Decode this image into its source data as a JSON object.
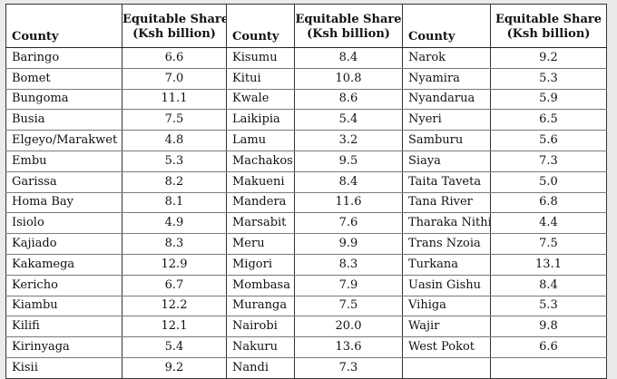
{
  "headers": {
    "county": "County",
    "share_line1": "Equitable Share",
    "share_line2": "(Ksh billion)"
  },
  "columns": [
    {
      "rows": [
        {
          "county": "Baringo",
          "value": "6.6"
        },
        {
          "county": "Bomet",
          "value": "7.0"
        },
        {
          "county": "Bungoma",
          "value": "11.1"
        },
        {
          "county": "Busia",
          "value": "7.5"
        },
        {
          "county": "Elgeyo/Marakwet",
          "value": "4.8"
        },
        {
          "county": "Embu",
          "value": "5.3"
        },
        {
          "county": "Garissa",
          "value": "8.2"
        },
        {
          "county": "Homa Bay",
          "value": "8.1"
        },
        {
          "county": "Isiolo",
          "value": "4.9"
        },
        {
          "county": "Kajiado",
          "value": "8.3"
        },
        {
          "county": "Kakamega",
          "value": "12.9"
        },
        {
          "county": "Kericho",
          "value": "6.7"
        },
        {
          "county": "Kiambu",
          "value": "12.2"
        },
        {
          "county": "Kilifi",
          "value": "12.1"
        },
        {
          "county": "Kirinyaga",
          "value": "5.4"
        },
        {
          "county": "Kisii",
          "value": "9.2"
        }
      ]
    },
    {
      "rows": [
        {
          "county": "Kisumu",
          "value": "8.4"
        },
        {
          "county": "Kitui",
          "value": "10.8"
        },
        {
          "county": "Kwale",
          "value": "8.6"
        },
        {
          "county": "Laikipia",
          "value": "5.4"
        },
        {
          "county": "Lamu",
          "value": "3.2"
        },
        {
          "county": "Machakos",
          "value": "9.5"
        },
        {
          "county": "Makueni",
          "value": "8.4"
        },
        {
          "county": "Mandera",
          "value": "11.6"
        },
        {
          "county": "Marsabit",
          "value": "7.6"
        },
        {
          "county": "Meru",
          "value": "9.9"
        },
        {
          "county": "Migori",
          "value": "8.3"
        },
        {
          "county": "Mombasa",
          "value": "7.9"
        },
        {
          "county": "Muranga",
          "value": "7.5"
        },
        {
          "county": "Nairobi",
          "value": "20.0"
        },
        {
          "county": "Nakuru",
          "value": "13.6"
        },
        {
          "county": "Nandi",
          "value": "7.3"
        }
      ]
    },
    {
      "rows": [
        {
          "county": "Narok",
          "value": "9.2"
        },
        {
          "county": "Nyamira",
          "value": "5.3"
        },
        {
          "county": "Nyandarua",
          "value": "5.9"
        },
        {
          "county": "Nyeri",
          "value": "6.5"
        },
        {
          "county": "Samburu",
          "value": "5.6"
        },
        {
          "county": "Siaya",
          "value": "7.3"
        },
        {
          "county": "Taita Taveta",
          "value": "5.0"
        },
        {
          "county": "Tana River",
          "value": "6.8"
        },
        {
          "county": "Tharaka Nithi",
          "value": "4.4"
        },
        {
          "county": "Trans Nzoia",
          "value": "7.5"
        },
        {
          "county": "Turkana",
          "value": "13.1"
        },
        {
          "county": "Uasin Gishu",
          "value": "8.4"
        },
        {
          "county": "Vihiga",
          "value": "5.3"
        },
        {
          "county": "Wajir",
          "value": "9.8"
        },
        {
          "county": "West Pokot",
          "value": "6.6"
        },
        {
          "county": "",
          "value": ""
        }
      ]
    }
  ]
}
